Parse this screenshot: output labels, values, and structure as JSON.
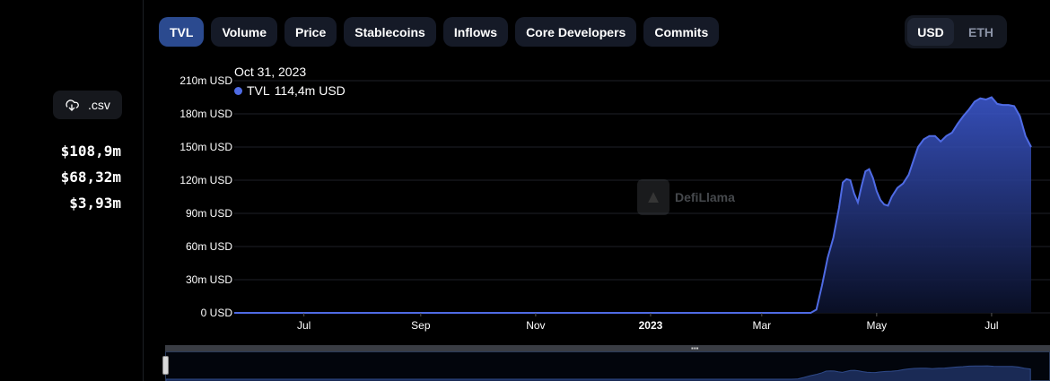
{
  "sidebar": {
    "csv_label": ".csv",
    "csv_icon": "cloud-download-icon",
    "stats": [
      "$108,9m",
      "$68,32m",
      "$3,93m"
    ]
  },
  "tabs": [
    {
      "label": "TVL",
      "active": true
    },
    {
      "label": "Volume",
      "active": false
    },
    {
      "label": "Price",
      "active": false
    },
    {
      "label": "Stablecoins",
      "active": false
    },
    {
      "label": "Inflows",
      "active": false
    },
    {
      "label": "Core Developers",
      "active": false
    },
    {
      "label": "Commits",
      "active": false
    }
  ],
  "currency": {
    "options": [
      "USD",
      "ETH"
    ],
    "selected": "USD"
  },
  "tooltip": {
    "date": "Oct 31, 2023",
    "series": "TVL",
    "value": "114,4m USD"
  },
  "watermark": "DefiLlama",
  "colors": {
    "accent": "#4f6be4",
    "tab_active": "#2b4a8f",
    "tab_bg": "#151a27"
  },
  "chart_data": {
    "type": "area",
    "title": "",
    "xlabel": "",
    "ylabel": "",
    "y_tick_labels": [
      "0 USD",
      "30m USD",
      "60m USD",
      "90m USD",
      "120m USD",
      "150m USD",
      "180m USD",
      "210m USD"
    ],
    "y_ticks": [
      0,
      30,
      60,
      90,
      120,
      150,
      180,
      210
    ],
    "ylim": [
      0,
      210
    ],
    "y_unit": "m USD",
    "x_tick_labels": [
      "Jul",
      "Sep",
      "Nov",
      "2023",
      "Mar",
      "May",
      "Jul"
    ],
    "x_tick_dates": [
      "2022-07-01",
      "2022-09-01",
      "2022-11-01",
      "2023-01-01",
      "2023-03-01",
      "2023-05-01",
      "2023-07-01"
    ],
    "xlim": [
      "2022-05-25",
      "2023-08-01"
    ],
    "grid": true,
    "series": [
      {
        "name": "TVL",
        "points": [
          [
            "2022-05-25",
            0
          ],
          [
            "2022-07-01",
            0
          ],
          [
            "2022-09-01",
            0
          ],
          [
            "2022-11-01",
            0
          ],
          [
            "2023-01-01",
            0
          ],
          [
            "2023-03-01",
            0
          ],
          [
            "2023-03-27",
            0
          ],
          [
            "2023-03-30",
            3
          ],
          [
            "2023-04-02",
            25
          ],
          [
            "2023-04-05",
            50
          ],
          [
            "2023-04-08",
            68
          ],
          [
            "2023-04-11",
            95
          ],
          [
            "2023-04-13",
            118
          ],
          [
            "2023-04-15",
            121
          ],
          [
            "2023-04-17",
            120
          ],
          [
            "2023-04-19",
            108
          ],
          [
            "2023-04-21",
            100
          ],
          [
            "2023-04-23",
            115
          ],
          [
            "2023-04-25",
            128
          ],
          [
            "2023-04-27",
            130
          ],
          [
            "2023-04-29",
            122
          ],
          [
            "2023-05-01",
            110
          ],
          [
            "2023-05-03",
            102
          ],
          [
            "2023-05-05",
            98
          ],
          [
            "2023-05-07",
            97
          ],
          [
            "2023-05-09",
            105
          ],
          [
            "2023-05-12",
            113
          ],
          [
            "2023-05-15",
            117
          ],
          [
            "2023-05-18",
            125
          ],
          [
            "2023-05-21",
            140
          ],
          [
            "2023-05-23",
            150
          ],
          [
            "2023-05-26",
            157
          ],
          [
            "2023-05-29",
            160
          ],
          [
            "2023-06-01",
            160
          ],
          [
            "2023-06-04",
            155
          ],
          [
            "2023-06-07",
            160
          ],
          [
            "2023-06-10",
            163
          ],
          [
            "2023-06-13",
            171
          ],
          [
            "2023-06-16",
            178
          ],
          [
            "2023-06-19",
            184
          ],
          [
            "2023-06-22",
            191
          ],
          [
            "2023-06-25",
            194
          ],
          [
            "2023-06-28",
            193
          ],
          [
            "2023-07-01",
            195
          ],
          [
            "2023-07-04",
            189
          ],
          [
            "2023-07-07",
            188
          ],
          [
            "2023-07-10",
            188
          ],
          [
            "2023-07-13",
            187
          ],
          [
            "2023-07-16",
            178
          ],
          [
            "2023-07-19",
            160
          ],
          [
            "2023-07-22",
            150
          ]
        ]
      }
    ]
  }
}
